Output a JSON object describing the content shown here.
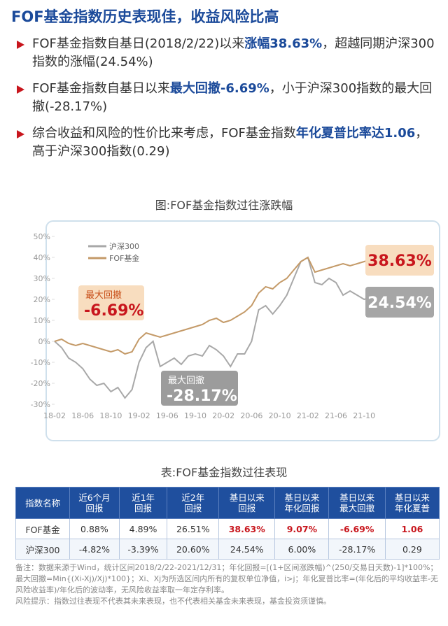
{
  "header": {
    "title": "FOF基金指数历史表现佳，收益风险比高"
  },
  "bullets": [
    {
      "segments": [
        {
          "text": "FOF基金指数自基日(2018/2/22)以来",
          "bold": false
        },
        {
          "text": "涨幅38.63%",
          "bold": true
        },
        {
          "text": "，超越同期沪深300指数的涨幅(24.54%)",
          "bold": false
        }
      ]
    },
    {
      "segments": [
        {
          "text": "FOF基金指数自基日以来",
          "bold": false
        },
        {
          "text": "最大回撤-6.69%",
          "bold": true
        },
        {
          "text": "，小于沪深300指数的最大回撤(-28.17%)",
          "bold": false
        }
      ]
    },
    {
      "segments": [
        {
          "text": "综合收益和风险的性价比来考虑，FOF基金指数",
          "bold": false
        },
        {
          "text": "年化夏普比率达1.06",
          "bold": true
        },
        {
          "text": "，高于沪深300指数(0.29)",
          "bold": false
        }
      ]
    }
  ],
  "chart_data": {
    "type": "line",
    "title": "图:FOF基金指数过往涨跌幅",
    "categories": [
      "18-02",
      null,
      null,
      null,
      "18-06",
      null,
      null,
      null,
      "18-10",
      null,
      null,
      null,
      "19-02",
      null,
      null,
      null,
      "19-06",
      null,
      null,
      null,
      "19-10",
      null,
      null,
      null,
      "20-02",
      null,
      null,
      null,
      "20-06",
      null,
      null,
      null,
      "20-10",
      null,
      null,
      null,
      "21-02",
      null,
      null,
      null,
      "21-06",
      null,
      null,
      null,
      "21-10",
      null,
      null
    ],
    "series": [
      {
        "name": "沪深300",
        "color": "#a8a8a8",
        "end_label": "24.54%",
        "values": [
          0,
          -3,
          -8,
          -10,
          -13,
          -18,
          -21,
          -20,
          -24,
          -22,
          -27,
          -23,
          -10,
          -3,
          0,
          -12,
          -10,
          -8,
          -11,
          -7,
          -6,
          -7,
          -2,
          -4,
          -7,
          -12,
          -6,
          -6,
          0,
          15,
          17,
          13,
          17,
          22,
          30,
          38,
          40,
          28,
          27,
          30,
          28,
          22,
          24,
          22,
          20,
          21,
          24.54
        ]
      },
      {
        "name": "FOF基金",
        "color": "#c49a68",
        "end_label": "38.63%",
        "values": [
          0,
          1,
          -1,
          -2,
          -1,
          -2,
          -3,
          -4,
          -5,
          -4,
          -6,
          -5,
          1,
          4,
          3,
          2,
          3,
          4,
          5,
          6,
          7,
          8,
          10,
          11,
          9,
          10,
          12,
          14,
          17,
          23,
          26,
          25,
          28,
          30,
          34,
          38,
          40,
          33,
          34,
          35,
          36,
          37,
          36,
          37,
          38,
          39,
          38.63
        ]
      }
    ],
    "annotations": [
      {
        "title": "最大回撤",
        "text": "-6.69%"
      },
      {
        "title": "最大回撤",
        "text": "-28.17%"
      }
    ],
    "ylim": [
      -30,
      50
    ],
    "yticks": [
      {
        "value": -30,
        "label": "-30%"
      },
      {
        "value": -20,
        "label": "-20%"
      },
      {
        "value": -10,
        "label": "-10%"
      },
      {
        "value": 0,
        "label": "0%"
      },
      {
        "value": 10,
        "label": "10%"
      },
      {
        "value": 20,
        "label": "20%"
      },
      {
        "value": 30,
        "label": "30%"
      },
      {
        "value": 40,
        "label": "40%"
      },
      {
        "value": 50,
        "label": "50%"
      }
    ],
    "legend": "top-left"
  },
  "table": {
    "title": "表:FOF基金指数过往表现",
    "header": [
      [
        "指数名称"
      ],
      [
        "近6个月",
        "回报"
      ],
      [
        "近1年",
        "回报"
      ],
      [
        "近2年",
        "回报"
      ],
      [
        "基日以来",
        "回报"
      ],
      [
        "基日以来",
        "年化回报"
      ],
      [
        "基日以来",
        "最大回撤"
      ],
      [
        "基日以来",
        "年化夏普"
      ]
    ],
    "rows": [
      [
        "FOF基金",
        "0.88%",
        "4.89%",
        "26.51%",
        "38.63%",
        "9.07%",
        "-6.69%",
        "1.06"
      ],
      [
        "沪深300",
        "-4.82%",
        "-3.39%",
        "20.60%",
        "24.54%",
        "6.00%",
        "-28.17%",
        "0.29"
      ]
    ]
  },
  "notes": [
    "备注：数据来源于Wind，统计区间2018/2/22-2021/12/31；年化回报=[(1+区间涨跌幅)^(250/交易日天数)-1]*100%；最大回撤=Min{(Xi-Xj)/Xj)*100}；Xi、Xj为所选区间内所有的复权单位净值，i>j；年化夏普比率=(年化后的平均收益率-无风险收益率)/年化后的波动率，无风险收益率取一年定存利率。",
    "风险提示：指数过往表现不代表其未来表现，也不代表相关基金未来表现，基金投资须谨慎。"
  ]
}
